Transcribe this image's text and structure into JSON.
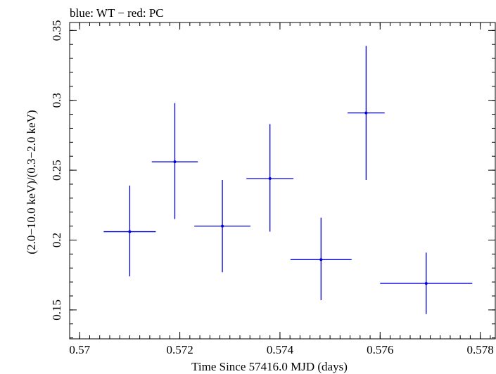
{
  "chart_data": {
    "type": "scatter",
    "title": "blue: WT − red: PC",
    "xlabel": "Time Since 57416.0 MJD (days)",
    "ylabel": "(2.0−10.0 keV)/(0.3−2.0 keV)",
    "xlim": [
      0.5698,
      0.5783
    ],
    "ylim": [
      0.1293,
      0.3557
    ],
    "x_ticks": [
      {
        "value": 0.57,
        "label": "0.57"
      },
      {
        "value": 0.572,
        "label": "0.572"
      },
      {
        "value": 0.574,
        "label": "0.574"
      },
      {
        "value": 0.576,
        "label": "0.576"
      },
      {
        "value": 0.578,
        "label": "0.578"
      }
    ],
    "y_ticks": [
      {
        "value": 0.15,
        "label": "0.15"
      },
      {
        "value": 0.2,
        "label": "0.2"
      },
      {
        "value": 0.25,
        "label": "0.25"
      },
      {
        "value": 0.3,
        "label": "0.3"
      },
      {
        "value": 0.35,
        "label": "0.35"
      }
    ],
    "x_minor_step": 0.0002,
    "y_minor_step": 0.01,
    "series": [
      {
        "name": "WT",
        "color": "#0000dd",
        "points": [
          {
            "x": 0.571,
            "y": 0.206,
            "xerr_lo": 0.00052,
            "xerr_hi": 0.00052,
            "yerr_lo": 0.032,
            "yerr_hi": 0.033
          },
          {
            "x": 0.5719,
            "y": 0.256,
            "xerr_lo": 0.00046,
            "xerr_hi": 0.00046,
            "yerr_lo": 0.041,
            "yerr_hi": 0.042
          },
          {
            "x": 0.57285,
            "y": 0.21,
            "xerr_lo": 0.00056,
            "xerr_hi": 0.00056,
            "yerr_lo": 0.033,
            "yerr_hi": 0.033
          },
          {
            "x": 0.5738,
            "y": 0.244,
            "xerr_lo": 0.00047,
            "xerr_hi": 0.00047,
            "yerr_lo": 0.038,
            "yerr_hi": 0.039
          },
          {
            "x": 0.57482,
            "y": 0.186,
            "xerr_lo": 0.00061,
            "xerr_hi": 0.00061,
            "yerr_lo": 0.029,
            "yerr_hi": 0.03
          },
          {
            "x": 0.57572,
            "y": 0.291,
            "xerr_lo": 0.00037,
            "xerr_hi": 0.00037,
            "yerr_lo": 0.048,
            "yerr_hi": 0.048
          },
          {
            "x": 0.57692,
            "y": 0.169,
            "xerr_lo": 0.00092,
            "xerr_hi": 0.00092,
            "yerr_lo": 0.022,
            "yerr_hi": 0.022
          }
        ]
      }
    ]
  }
}
